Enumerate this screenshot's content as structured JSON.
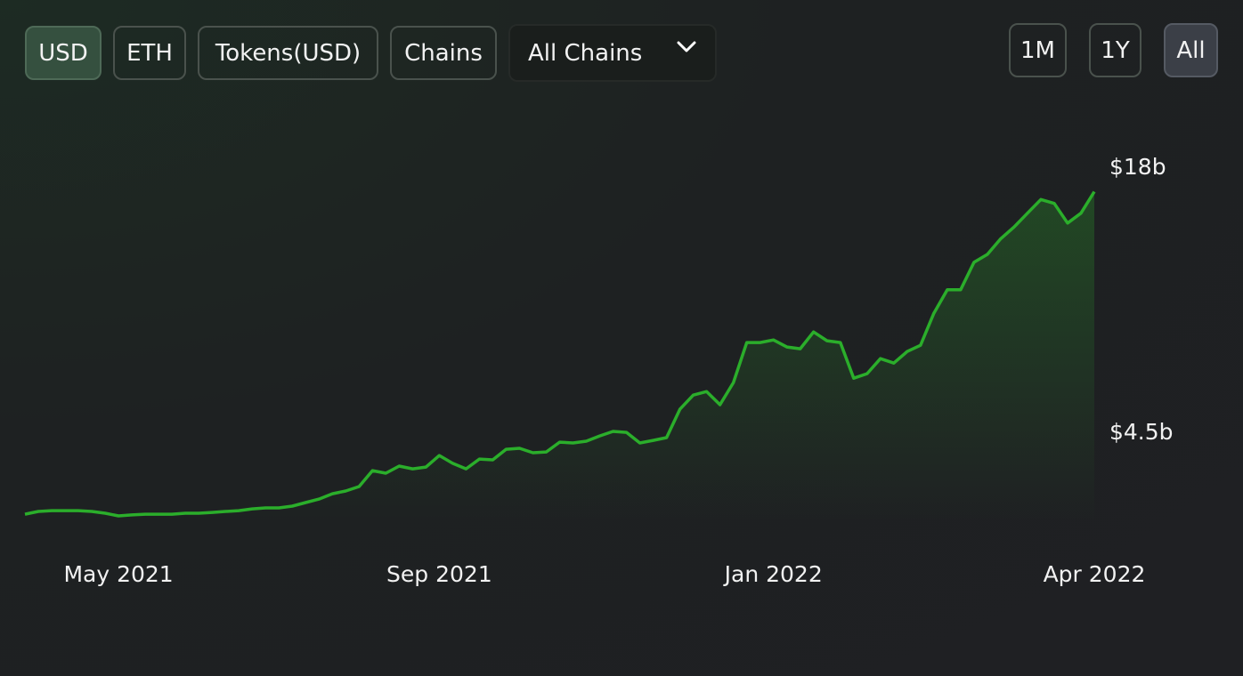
{
  "toolbar": {
    "currency_tabs": [
      "USD",
      "ETH",
      "Tokens(USD)",
      "Chains"
    ],
    "chain_select": "All Chains",
    "range_tabs": [
      "1M",
      "1Y",
      "All"
    ]
  },
  "chart_data": {
    "type": "line",
    "color": "#2bae2b",
    "grid": false,
    "categories": [
      null,
      null,
      null,
      null,
      null,
      null,
      null,
      "May 2021",
      null,
      null,
      null,
      null,
      null,
      null,
      null,
      null,
      null,
      null,
      null,
      null,
      null,
      null,
      null,
      null,
      null,
      null,
      null,
      null,
      null,
      null,
      null,
      "Sep 2021",
      null,
      null,
      null,
      null,
      null,
      null,
      null,
      null,
      null,
      null,
      null,
      null,
      null,
      null,
      null,
      null,
      null,
      null,
      null,
      null,
      null,
      null,
      null,
      null,
      "Jan 2022",
      null,
      null,
      null,
      null,
      null,
      null,
      null,
      null,
      null,
      null,
      null,
      null,
      null,
      null,
      null,
      null,
      null,
      null,
      null,
      null,
      null,
      null,
      null,
      "Apr 2022"
    ],
    "values": [
      0.36,
      0.5,
      0.54,
      0.54,
      0.54,
      0.5,
      0.41,
      0.27,
      0.32,
      0.36,
      0.36,
      0.36,
      0.41,
      0.41,
      0.45,
      0.5,
      0.54,
      0.63,
      0.68,
      0.68,
      0.77,
      0.95,
      1.13,
      1.4,
      1.54,
      1.77,
      2.58,
      2.45,
      2.81,
      2.67,
      2.76,
      3.35,
      2.95,
      2.67,
      3.17,
      3.13,
      3.67,
      3.72,
      3.49,
      3.53,
      4.03,
      3.99,
      4.08,
      4.35,
      4.58,
      4.53,
      3.99,
      4.12,
      4.26,
      5.71,
      6.43,
      6.61,
      5.94,
      7.07,
      9.11,
      9.11,
      9.24,
      8.88,
      8.79,
      9.65,
      9.2,
      9.11,
      7.29,
      7.52,
      8.29,
      8.06,
      8.65,
      8.97,
      10.6,
      11.8,
      11.8,
      13.2,
      13.6,
      14.4,
      15.0,
      15.7,
      16.4,
      16.2,
      15.2,
      15.7,
      16.8
    ],
    "ylim": [
      0,
      18
    ],
    "yticks": [
      {
        "value": 4.5,
        "label": "$4.5b"
      },
      {
        "value": 18,
        "label": "$18b"
      }
    ]
  }
}
